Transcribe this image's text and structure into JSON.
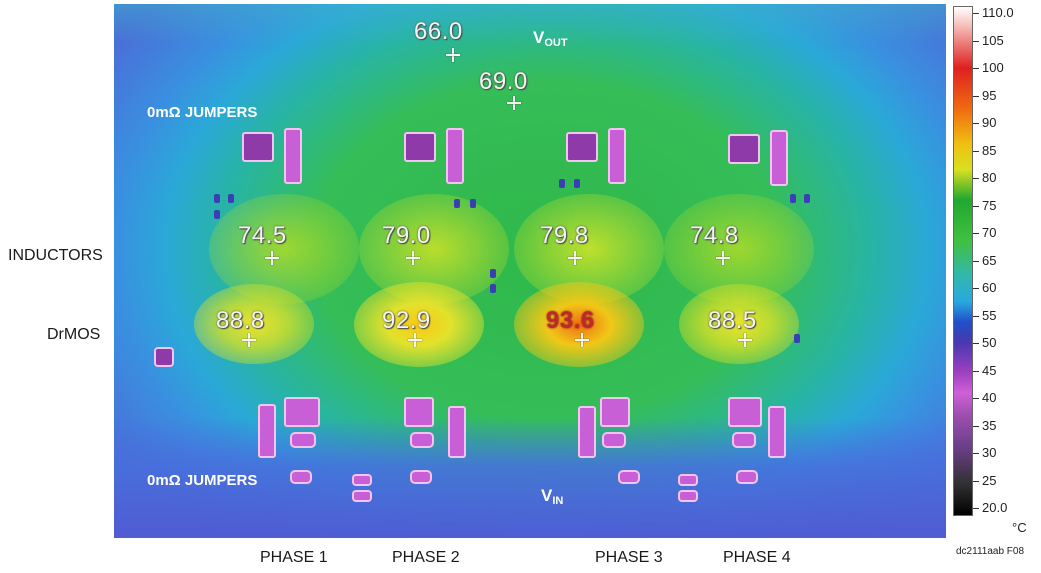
{
  "labels": {
    "inductors": "INDUCTORS",
    "drmos": "DrMOS",
    "phases": [
      "PHASE 1",
      "PHASE 2",
      "PHASE 3",
      "PHASE 4"
    ],
    "jumpers_top": "0mΩ JUMPERS",
    "jumpers_bottom": "0mΩ JUMPERS",
    "vout_main": "V",
    "vout_sub": "OUT",
    "vin_main": "V",
    "vin_sub": "IN",
    "figure_id": "dc2111aab F08"
  },
  "temperatures": {
    "output_1": "66.0",
    "output_2": "69.0",
    "inductor_1": "74.5",
    "inductor_2": "79.0",
    "inductor_3": "79.8",
    "inductor_4": "74.8",
    "drmos_1": "88.8",
    "drmos_2": "92.9",
    "drmos_3": "93.6",
    "drmos_4": "88.5"
  },
  "colorbar": {
    "ticks": [
      "110.0",
      "105",
      "100",
      "95",
      "90",
      "85",
      "80",
      "75",
      "70",
      "65",
      "60",
      "55",
      "50",
      "45",
      "40",
      "35",
      "30",
      "25",
      "20.0"
    ],
    "unit": "°C",
    "max": 110.0,
    "min": 20.0
  }
}
